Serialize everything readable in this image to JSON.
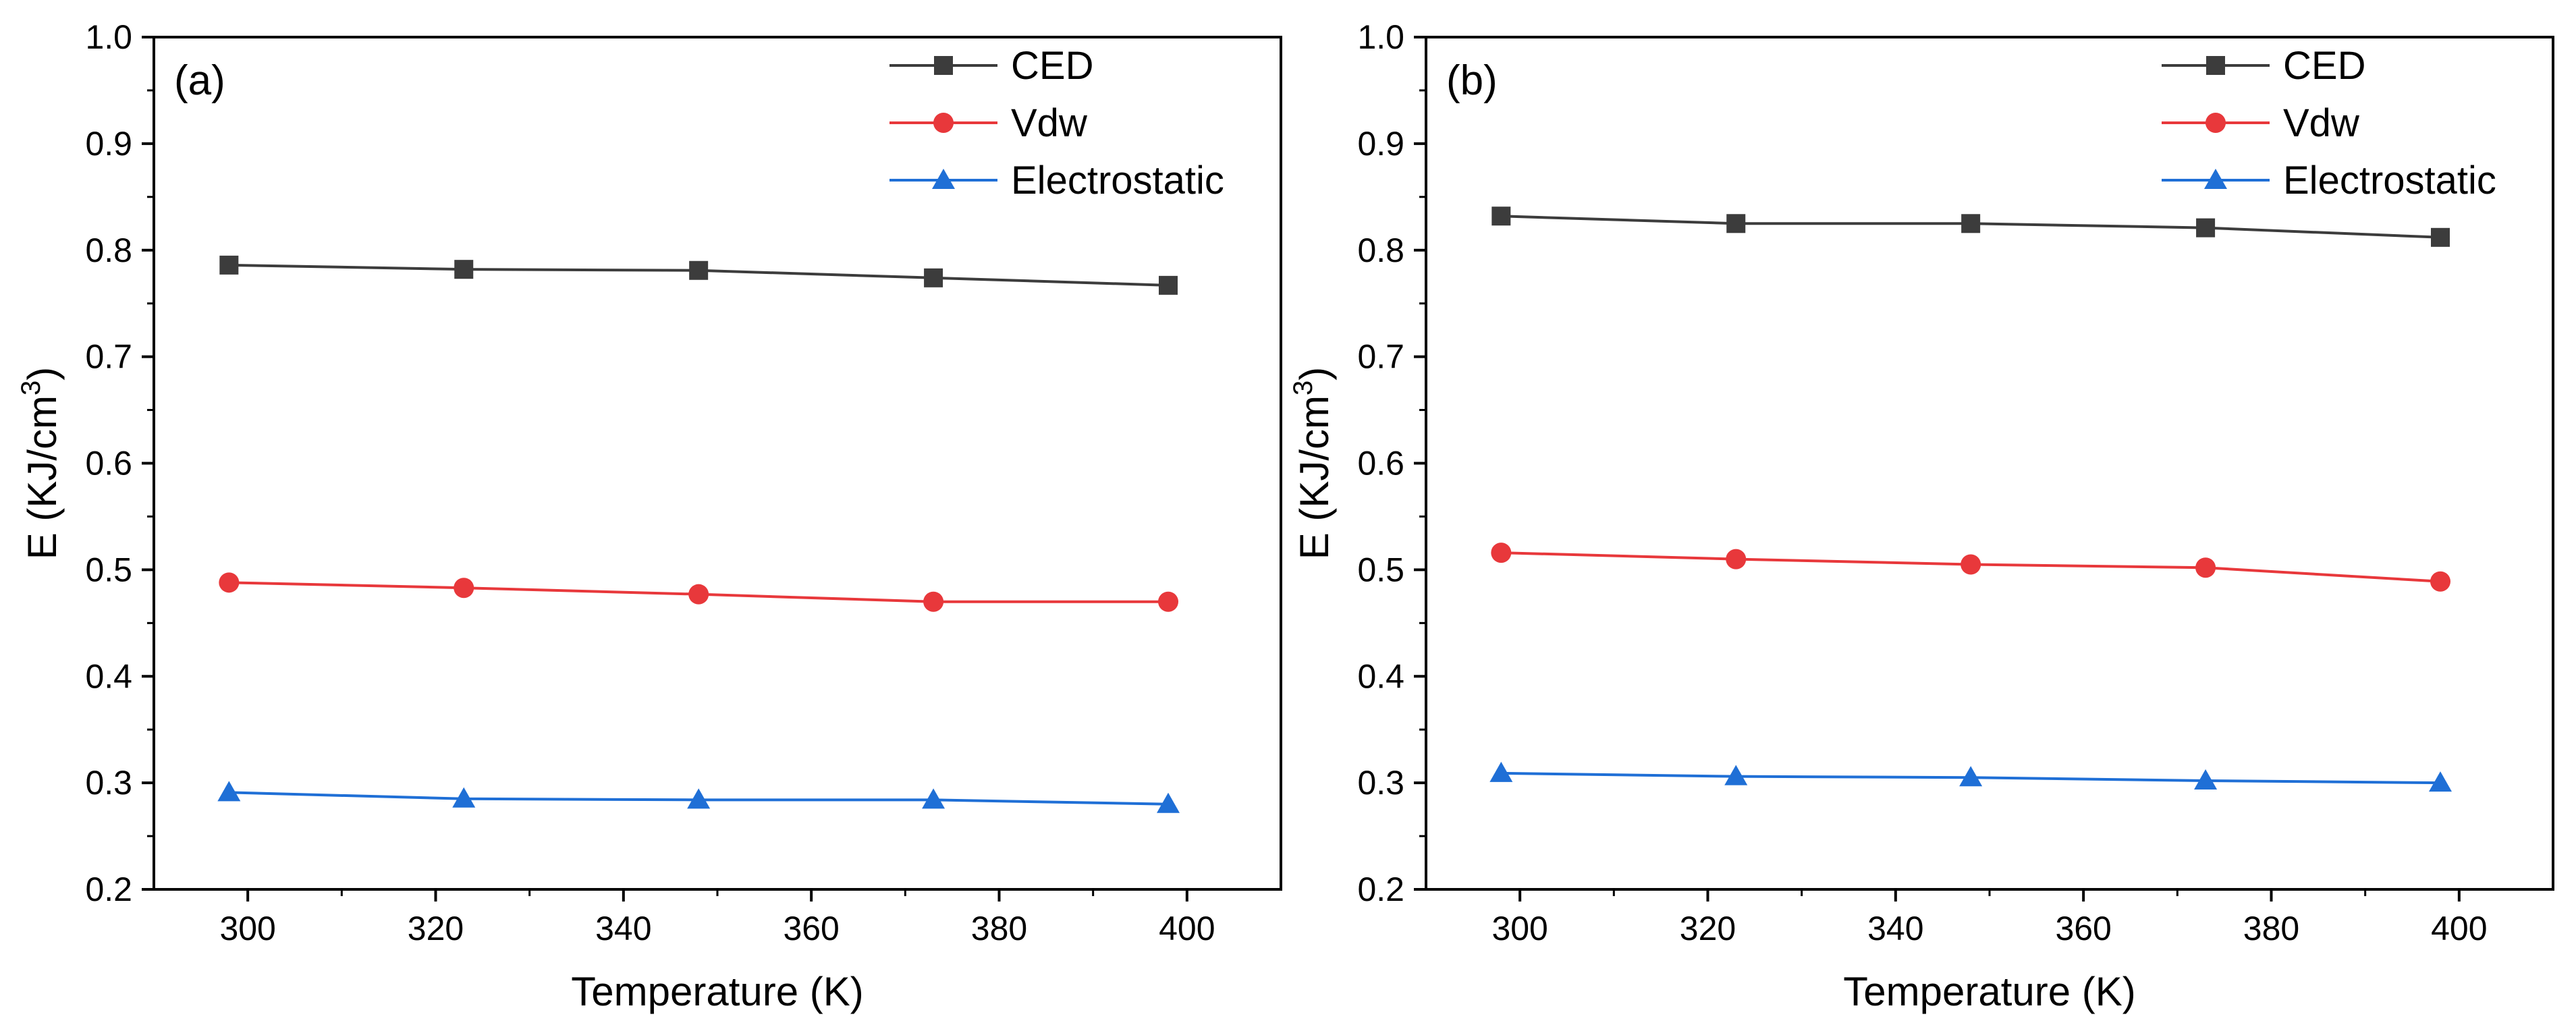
{
  "chart_data": [
    {
      "type": "line",
      "panel_label": "(a)",
      "xlabel": "Temperature (K)",
      "ylabel_main": "E (KJ/cm",
      "ylabel_sup": "3",
      "ylabel_end": ")",
      "xlim": [
        290,
        410
      ],
      "ylim": [
        0.2,
        1.0
      ],
      "xticks": [
        300,
        320,
        340,
        360,
        380,
        400
      ],
      "yticks": [
        0.2,
        0.3,
        0.4,
        0.5,
        0.6,
        0.7,
        0.8,
        0.9,
        1.0
      ],
      "x": [
        298,
        323,
        348,
        373,
        398
      ],
      "series": [
        {
          "name": "CED",
          "color": "#3c3c3c",
          "marker": "square",
          "values": [
            0.786,
            0.782,
            0.781,
            0.774,
            0.767
          ]
        },
        {
          "name": "Vdw",
          "color": "#e8383b",
          "marker": "circle",
          "values": [
            0.488,
            0.483,
            0.477,
            0.47,
            0.47
          ]
        },
        {
          "name": "Electrostatic",
          "color": "#1f6fd6",
          "marker": "triangle",
          "values": [
            0.291,
            0.285,
            0.284,
            0.284,
            0.28
          ]
        }
      ],
      "legend_position": "top-right"
    },
    {
      "type": "line",
      "panel_label": "(b)",
      "xlabel": "Temperature (K)",
      "ylabel_main": "E (KJ/cm",
      "ylabel_sup": "3",
      "ylabel_end": ")",
      "xlim": [
        290,
        410
      ],
      "ylim": [
        0.2,
        1.0
      ],
      "xticks": [
        300,
        320,
        340,
        360,
        380,
        400
      ],
      "yticks": [
        0.2,
        0.3,
        0.4,
        0.5,
        0.6,
        0.7,
        0.8,
        0.9,
        1.0
      ],
      "x": [
        298,
        323,
        348,
        373,
        398
      ],
      "series": [
        {
          "name": "CED",
          "color": "#3c3c3c",
          "marker": "square",
          "values": [
            0.832,
            0.825,
            0.825,
            0.821,
            0.812
          ]
        },
        {
          "name": "Vdw",
          "color": "#e8383b",
          "marker": "circle",
          "values": [
            0.516,
            0.51,
            0.505,
            0.502,
            0.489
          ]
        },
        {
          "name": "Electrostatic",
          "color": "#1f6fd6",
          "marker": "triangle",
          "values": [
            0.309,
            0.306,
            0.305,
            0.302,
            0.3
          ]
        }
      ],
      "legend_position": "top-right"
    }
  ]
}
